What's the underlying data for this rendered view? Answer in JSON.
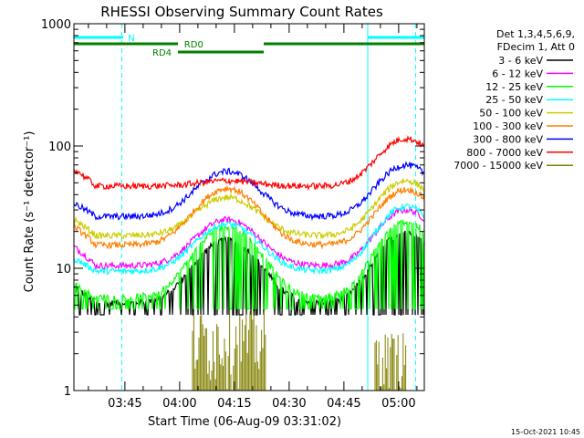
{
  "chart_data": {
    "type": "line",
    "title": "RHESSI Observing Summary Count Rates",
    "xlabel": "Start Time (06-Aug-09 03:31:02)",
    "ylabel": "Count Rate (s⁻¹ detector⁻¹)",
    "yscale": "log",
    "ylim": [
      1,
      1000
    ],
    "y_ticks": [
      {
        "v": 1,
        "label": "1"
      },
      {
        "v": 10,
        "label": "10"
      },
      {
        "v": 100,
        "label": "100"
      },
      {
        "v": 1000,
        "label": "1000"
      }
    ],
    "xlim_minutes": [
      0,
      96
    ],
    "x_ticks": [
      {
        "m": 13.97,
        "label": "03:45"
      },
      {
        "m": 28.97,
        "label": "04:00"
      },
      {
        "m": 43.97,
        "label": "04:15"
      },
      {
        "m": 58.97,
        "label": "04:30"
      },
      {
        "m": 73.97,
        "label": "04:45"
      },
      {
        "m": 88.97,
        "label": "05:00"
      }
    ],
    "legend_header": [
      "Det 1,3,4,5,6,9,",
      "FDecim 1, Att 0"
    ],
    "legend_placement": "right",
    "series": [
      {
        "name": "3 - 6 keV",
        "color": "#000000",
        "shape": "bump",
        "base": 5.2,
        "peak1": 17,
        "peak2": 20,
        "start": 7
      },
      {
        "name": "6 - 12 keV",
        "color": "#ff00ff",
        "shape": "bump",
        "base": 10.5,
        "peak1": 25,
        "peak2": 30,
        "start": 15
      },
      {
        "name": "12 - 25 keV",
        "color": "#00ff00",
        "shape": "bump",
        "base": 5.8,
        "peak1": 22,
        "peak2": 24,
        "start": 7.5
      },
      {
        "name": "25 - 50 keV",
        "color": "#00ffff",
        "shape": "bump",
        "base": 9.5,
        "peak1": 23,
        "peak2": 32,
        "start": 12
      },
      {
        "name": "50 - 100 keV",
        "color": "#cccc00",
        "shape": "bump",
        "base": 18.5,
        "peak1": 38,
        "peak2": 52,
        "start": 25
      },
      {
        "name": "100 - 300 keV",
        "color": "#ff8000",
        "shape": "bump",
        "base": 15.5,
        "peak1": 45,
        "peak2": 44,
        "start": 22
      },
      {
        "name": "300 - 800 keV",
        "color": "#0000ff",
        "shape": "bump",
        "base": 26.5,
        "peak1": 62,
        "peak2": 70,
        "start": 34
      },
      {
        "name": "800 - 7000 keV",
        "color": "#ff0000",
        "shape": "bump",
        "base": 47,
        "peak1": 52,
        "peak2": 115,
        "start": 65
      },
      {
        "name": "7000 - 15000 keV",
        "color": "#808000",
        "shape": "spikes"
      }
    ],
    "annotations": {
      "flags": [
        {
          "label": "N",
          "color": "#00ffff"
        },
        {
          "label": "RD0",
          "color": "#008000"
        },
        {
          "label": "RD4",
          "color": "#008000"
        }
      ]
    }
  },
  "timestamp": "15-Oct-2021 10:45"
}
